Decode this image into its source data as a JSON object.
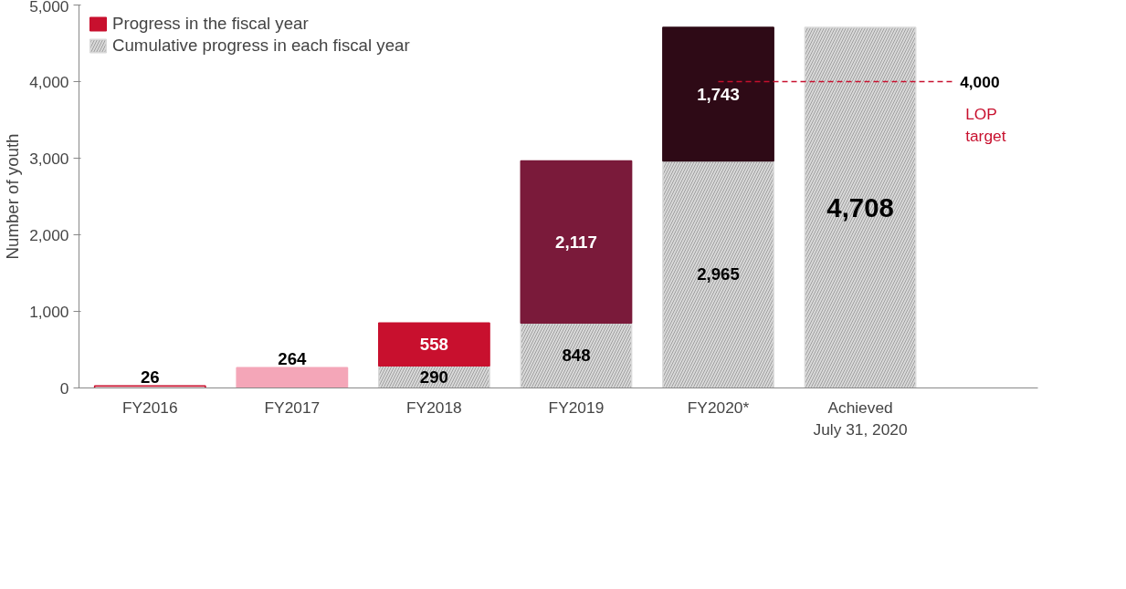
{
  "chart_data": {
    "type": "bar",
    "stacked": true,
    "ylabel": "Number of youth",
    "categories": [
      "FY2016",
      "FY2017",
      "FY2018",
      "FY2019",
      "FY2020*",
      "Achieved\nJuly 31, 2020"
    ],
    "series": [
      {
        "name": "Cumulative progress in each fiscal year",
        "color": "#d9d9d9",
        "values": [
          null,
          null,
          290,
          848,
          2965,
          4708
        ],
        "value_labels": [
          null,
          null,
          "290",
          "848",
          "2,965",
          "4,708"
        ]
      },
      {
        "name": "Progress in the fiscal year",
        "colors": [
          "#ffffff",
          "#f4a6b8",
          "#c8102e",
          "#7a1a3a",
          "#2e0a16",
          null
        ],
        "values": [
          26,
          264,
          558,
          2117,
          1743,
          null
        ],
        "value_labels": [
          "26",
          "264",
          "558",
          "2,117",
          "1,743",
          null
        ]
      }
    ],
    "ylim": [
      0,
      5000
    ],
    "yticks": [
      0,
      {
        "value": 1000,
        "label": "1,000"
      },
      {
        "value": 2000,
        "label": "2,000"
      },
      {
        "value": 3000,
        "label": "3,000"
      },
      {
        "value": 4000,
        "label": "4,000"
      },
      {
        "value": 5000,
        "label": "5,000"
      }
    ],
    "ref_lines": [
      {
        "axis": "y",
        "value": 4000,
        "label": "4,000",
        "color": "#c8102e",
        "line_style": "dashed"
      }
    ],
    "annotations": [
      "LOP target"
    ],
    "grid": false,
    "legend": "top left"
  }
}
